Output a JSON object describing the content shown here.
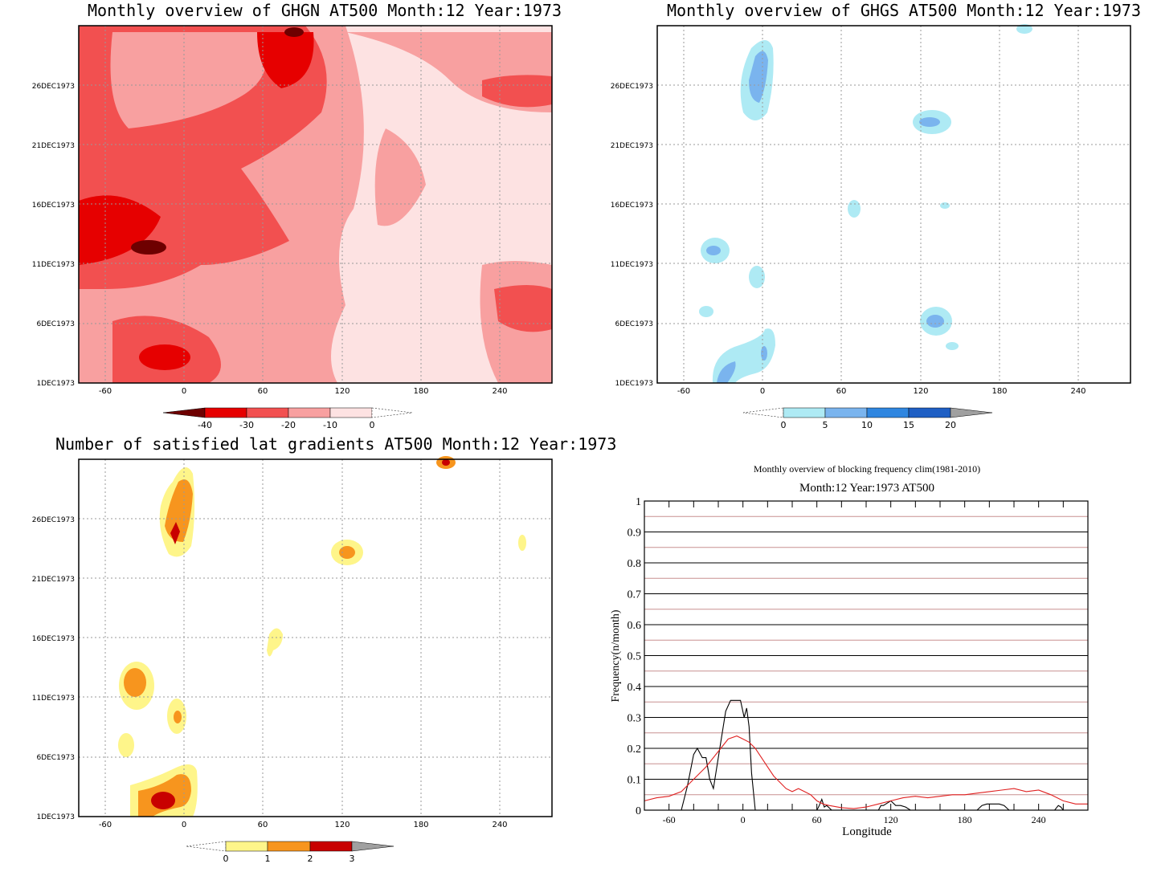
{
  "chart_data": [
    {
      "type": "heatmap",
      "title": "Monthly overview of GHGN AT500 Month:12 Year:1973",
      "x_ticks": [
        "-60",
        "0",
        "60",
        "120",
        "180",
        "240"
      ],
      "y_ticks": [
        "1DEC1973",
        "6DEC1973",
        "11DEC1973",
        "16DEC1973",
        "21DEC1973",
        "26DEC1973"
      ],
      "xlim": [
        -80,
        280
      ],
      "colorbar": {
        "labels": [
          "-40",
          "-30",
          "-20",
          "-10",
          "0"
        ],
        "colors": [
          "#6e0000",
          "#e60000",
          "#f25050",
          "#f8a0a0",
          "#fde2e2",
          "#ffffff"
        ]
      }
    },
    {
      "type": "heatmap",
      "title": "Monthly overview of GHGS AT500 Month:12 Year:1973",
      "x_ticks": [
        "-60",
        "0",
        "60",
        "120",
        "180",
        "240"
      ],
      "y_ticks": [
        "1DEC1973",
        "6DEC1973",
        "11DEC1973",
        "16DEC1973",
        "21DEC1973",
        "26DEC1973"
      ],
      "xlim": [
        -80,
        280
      ],
      "colorbar": {
        "labels": [
          "0",
          "5",
          "10",
          "15",
          "20"
        ],
        "colors": [
          "#ffffff",
          "#aeeaf4",
          "#7ab4ee",
          "#2f86e0",
          "#1f5fc4",
          "#a0a0a0"
        ]
      }
    },
    {
      "type": "heatmap",
      "title": "Number of satisfied lat gradients AT500 Month:12 Year:1973",
      "x_ticks": [
        "-60",
        "0",
        "60",
        "120",
        "180",
        "240"
      ],
      "y_ticks": [
        "1DEC1973",
        "6DEC1973",
        "11DEC1973",
        "16DEC1973",
        "21DEC1973",
        "26DEC1973"
      ],
      "xlim": [
        -80,
        280
      ],
      "colorbar": {
        "labels": [
          "0",
          "1",
          "2",
          "3"
        ],
        "colors": [
          "#ffffff",
          "#fef58a",
          "#f7951e",
          "#c80000",
          "#a0a0a0"
        ]
      }
    },
    {
      "type": "line",
      "title": "Monthly overview of blocking frequency clim(1981-2010)",
      "subtitle": "Month:12 Year:1973  AT500",
      "xlabel": "Longitude",
      "ylabel": "Frequency(n/month)",
      "xlim": [
        -80,
        280
      ],
      "ylim": [
        0,
        1
      ],
      "x_ticks": [
        "-60",
        "0",
        "60",
        "120",
        "180",
        "240"
      ],
      "y_ticks": [
        "0",
        "0.1",
        "0.2",
        "0.3",
        "0.4",
        "0.5",
        "0.6",
        "0.7",
        "0.8",
        "0.9",
        "1"
      ],
      "series": [
        {
          "color": "#000000",
          "x": [
            -80,
            -50,
            -45,
            -40,
            -37,
            -33,
            -30,
            -27,
            -24,
            -20,
            -14,
            -10,
            -8,
            -2,
            1,
            3,
            5,
            7,
            10,
            20,
            60,
            62,
            64,
            66,
            68,
            72,
            80,
            110,
            112,
            114,
            116,
            120,
            124,
            128,
            132,
            136,
            140,
            150,
            180,
            190,
            194,
            198,
            204,
            208,
            212,
            216,
            240,
            253,
            256,
            258,
            260,
            280
          ],
          "y": [
            0,
            0,
            0.08,
            0.18,
            0.2,
            0.17,
            0.17,
            0.1,
            0.07,
            0.17,
            0.32,
            0.355,
            0.355,
            0.355,
            0.3,
            0.33,
            0.27,
            0.12,
            0,
            0,
            0,
            0.015,
            0.035,
            0.01,
            0.015,
            0,
            0,
            0,
            0.015,
            0.015,
            0.02,
            0.03,
            0.015,
            0.015,
            0.01,
            0,
            0,
            0,
            0,
            0,
            0.015,
            0.02,
            0.02,
            0.02,
            0.015,
            0,
            0,
            0,
            0.015,
            0.01,
            0,
            0
          ]
        },
        {
          "color": "#e02020",
          "x": [
            -80,
            -70,
            -60,
            -50,
            -40,
            -30,
            -20,
            -12,
            -5,
            0,
            5,
            10,
            15,
            20,
            25,
            30,
            35,
            40,
            45,
            50,
            55,
            60,
            65,
            70,
            80,
            90,
            100,
            110,
            120,
            130,
            140,
            150,
            160,
            170,
            180,
            190,
            200,
            210,
            220,
            230,
            240,
            250,
            260,
            270,
            280
          ],
          "y": [
            0.03,
            0.04,
            0.045,
            0.06,
            0.1,
            0.14,
            0.19,
            0.23,
            0.24,
            0.23,
            0.22,
            0.2,
            0.17,
            0.14,
            0.11,
            0.09,
            0.07,
            0.06,
            0.07,
            0.06,
            0.05,
            0.03,
            0.02,
            0.015,
            0.008,
            0.005,
            0.01,
            0.02,
            0.03,
            0.04,
            0.045,
            0.04,
            0.045,
            0.05,
            0.05,
            0.055,
            0.06,
            0.065,
            0.07,
            0.06,
            0.065,
            0.05,
            0.03,
            0.02,
            0.02
          ]
        }
      ]
    }
  ]
}
